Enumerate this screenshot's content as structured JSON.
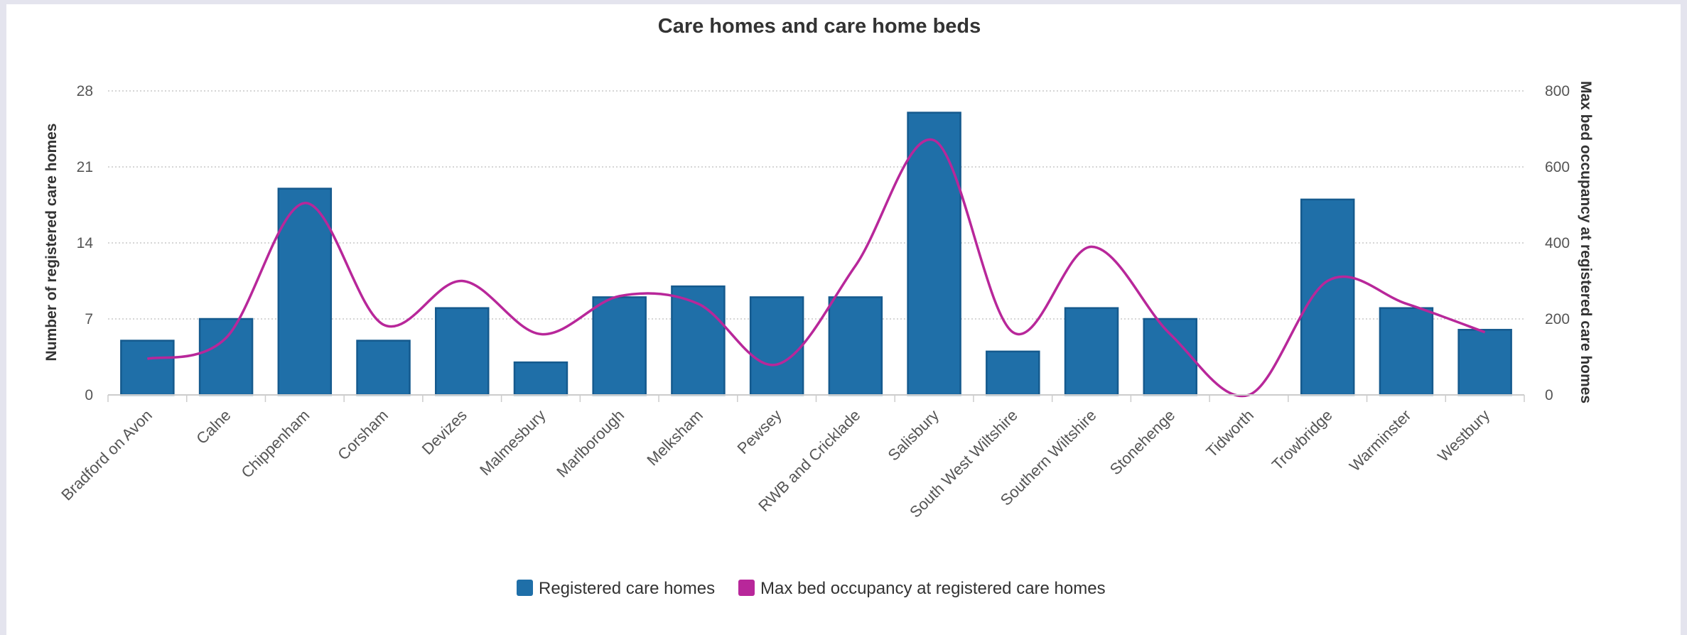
{
  "chart_data": {
    "type": "bar",
    "title": "Care homes and care home beds",
    "categories": [
      "Bradford on Avon",
      "Calne",
      "Chippenham",
      "Corsham",
      "Devizes",
      "Malmesbury",
      "Marlborough",
      "Melksham",
      "Pewsey",
      "RWB and Cricklade",
      "Salisbury",
      "South West Wiltshire",
      "Southern Wiltshire",
      "Stonehenge",
      "Tidworth",
      "Trowbridge",
      "Warminster",
      "Westbury"
    ],
    "series": [
      {
        "name": "Registered care homes",
        "type": "bar",
        "axis": "left",
        "color": "#1f6fa8",
        "values": [
          5,
          7,
          19,
          5,
          8,
          3,
          9,
          10,
          9,
          9,
          26,
          4,
          8,
          7,
          0,
          18,
          8,
          6
        ]
      },
      {
        "name": "Max bed occupancy at registered care homes",
        "type": "line",
        "smooth": true,
        "axis": "right",
        "color": "#b8279a",
        "values": [
          95,
          150,
          505,
          185,
          300,
          160,
          260,
          240,
          80,
          340,
          670,
          165,
          390,
          160,
          0,
          300,
          240,
          165
        ]
      }
    ],
    "ylabel": "Number of registered care homes",
    "y2label": "Max bed occupancy at registered care homes",
    "ylim": [
      0,
      28
    ],
    "y2lim": [
      0,
      800
    ],
    "yticks": [
      "0",
      "7",
      "14",
      "21",
      "28"
    ],
    "y2ticks": [
      "0",
      "200",
      "400",
      "600",
      "800"
    ],
    "grid": true,
    "legend_position": "bottom"
  }
}
